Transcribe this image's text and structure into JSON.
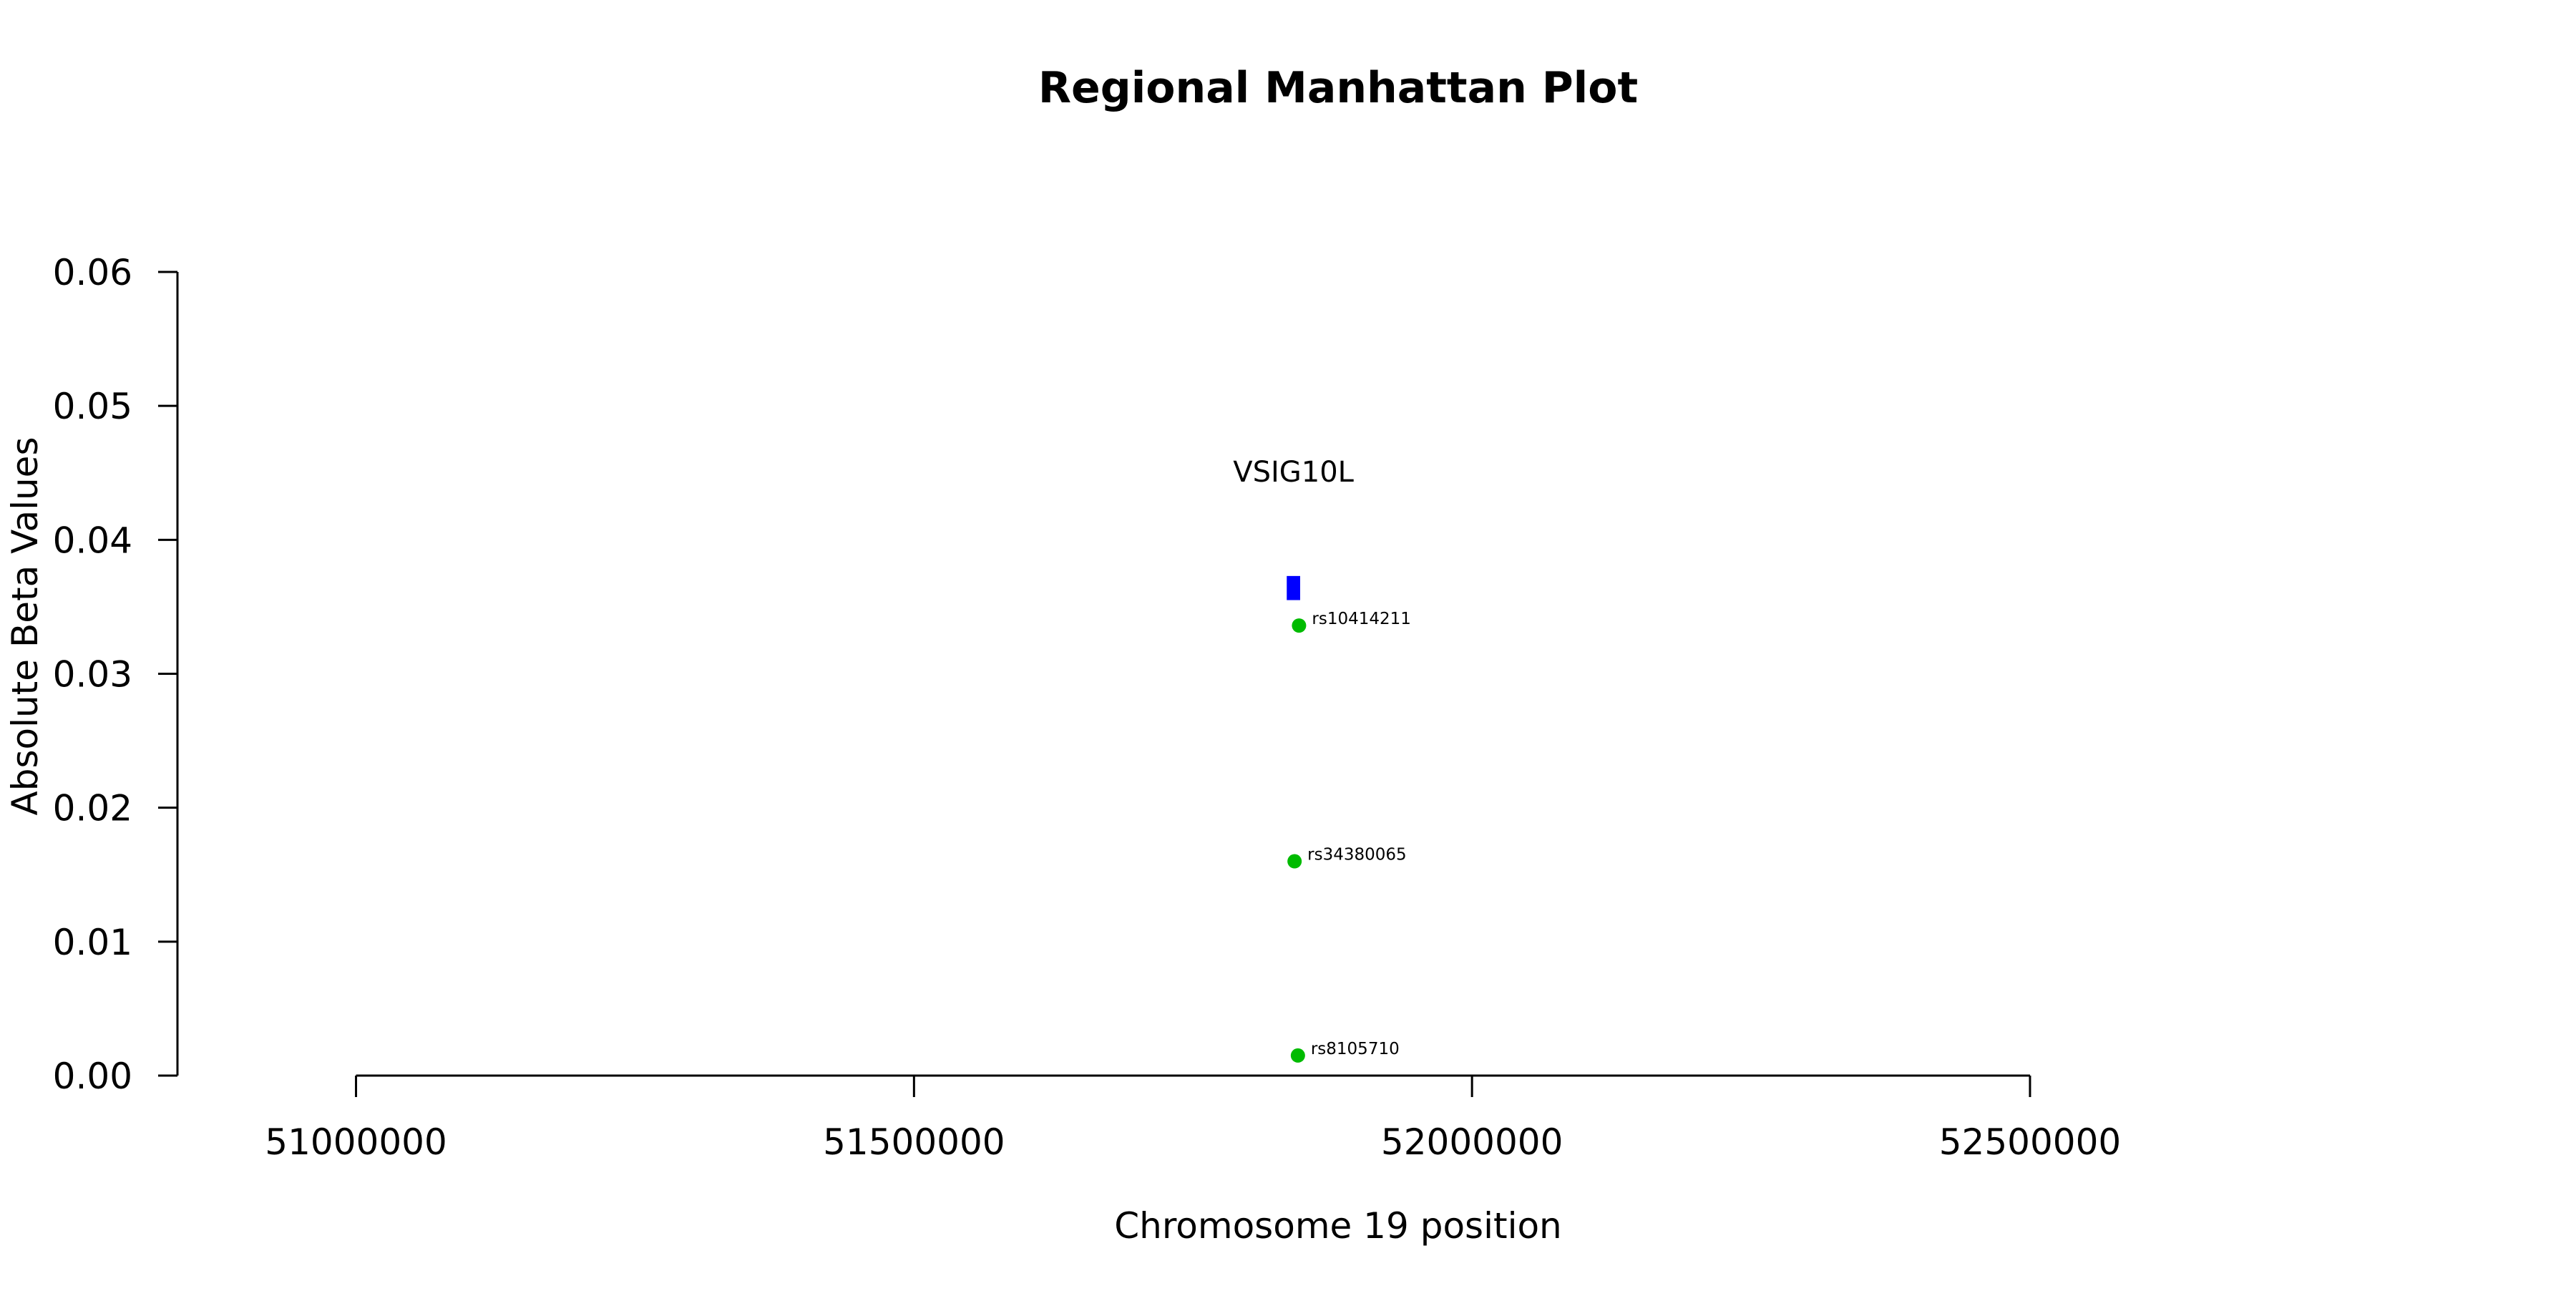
{
  "chart_data": {
    "type": "scatter",
    "title": "Regional Manhattan Plot",
    "xlabel": "Chromosome 19 position",
    "ylabel": "Absolute Beta Values",
    "xlim": [
      50840000,
      52920000
    ],
    "ylim": [
      0,
      0.06
    ],
    "x_ticks": [
      51000000,
      51500000,
      52000000,
      52500000
    ],
    "x_tick_labels": [
      "51000000",
      "51500000",
      "52000000",
      "52500000"
    ],
    "y_ticks": [
      0,
      0.01,
      0.02,
      0.03,
      0.04,
      0.05,
      0.06
    ],
    "y_tick_labels": [
      "0.00",
      "0.01",
      "0.02",
      "0.03",
      "0.04",
      "0.05",
      "0.06"
    ],
    "grid": false,
    "points": [
      {
        "label": "rs10414211",
        "x": 51845000,
        "y": 0.0336
      },
      {
        "label": "rs34380065",
        "x": 51841000,
        "y": 0.016
      },
      {
        "label": "rs8105710",
        "x": 51844000,
        "y": 0.0015
      }
    ],
    "point_color": "#00bb00",
    "genes": [
      {
        "name": "VSIG10L",
        "start": 51834000,
        "end": 51846000,
        "y_low": 0.0355,
        "y_high": 0.0373
      }
    ],
    "gene_color": "#0000ff"
  }
}
